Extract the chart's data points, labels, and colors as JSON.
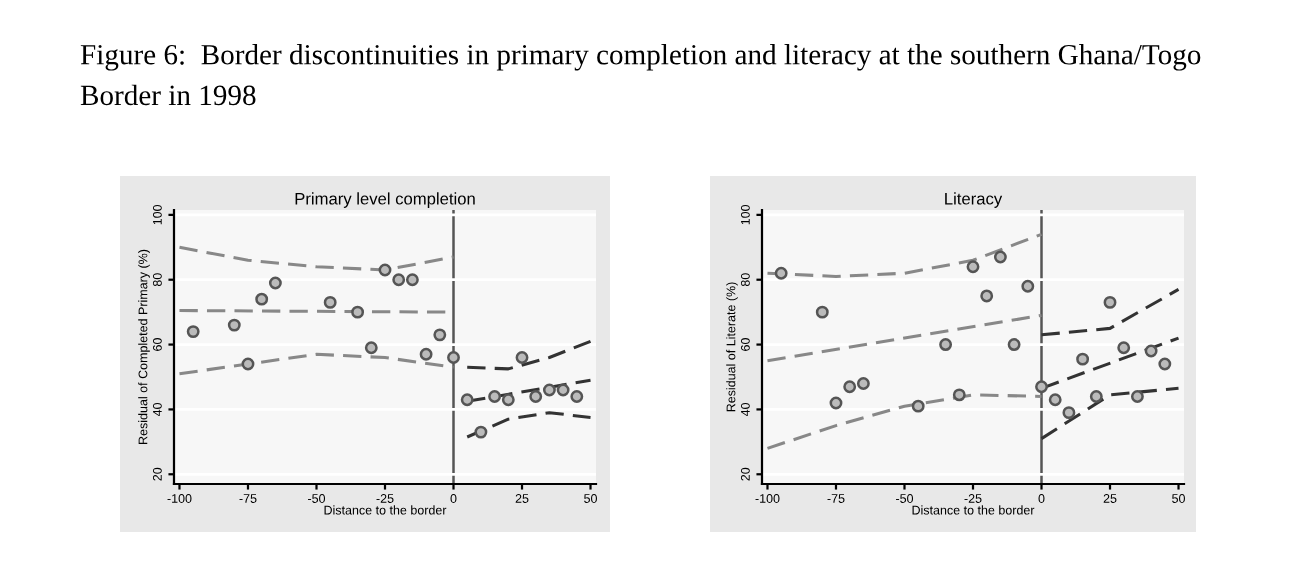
{
  "chart_data": [
    {
      "type": "scatter",
      "title": "Primary level completion",
      "xlabel": "Distance to the border",
      "ylabel": "Residual of Completed Primary (%)",
      "annotations": [
        "Figure 6:  Border discontinuities in primary completion and literacy at the southern Ghana/Togo Border in 1998"
      ],
      "xlim": [
        -102,
        52
      ],
      "ylim": [
        17,
        101.5
      ],
      "xticks": [
        -100,
        -75,
        -50,
        -25,
        0,
        25,
        50
      ],
      "yticks": [
        20,
        40,
        60,
        80,
        100
      ],
      "grid": "y",
      "ref_lines": [
        {
          "axis": "x",
          "value": 0,
          "color": "#555555"
        }
      ],
      "series": [
        {
          "marker": "circle",
          "color": "#555555",
          "x": [
            -95,
            -80,
            -75,
            -70,
            -65,
            -45,
            -35,
            -30,
            -25,
            -20,
            -15,
            -10,
            -5,
            0,
            5,
            10,
            15,
            20,
            25,
            30,
            35,
            40,
            45
          ],
          "values": [
            64,
            66,
            54,
            74,
            79,
            73,
            70,
            59,
            83,
            80,
            80,
            57,
            63,
            56,
            43,
            33,
            44,
            43,
            56,
            44,
            46,
            46,
            44
          ]
        },
        {
          "type": "line",
          "line_style": "dashed",
          "color": "#888888",
          "x": [
            -100,
            0
          ],
          "values": [
            70.5,
            70
          ]
        },
        {
          "type": "line",
          "line_style": "dashed",
          "color": "#888888",
          "x": [
            -100,
            -75,
            -50,
            -25,
            0
          ],
          "values": [
            90,
            86,
            84,
            83,
            87
          ]
        },
        {
          "type": "line",
          "line_style": "dashed",
          "color": "#888888",
          "x": [
            -100,
            -75,
            -50,
            -25,
            0
          ],
          "values": [
            51,
            54,
            57,
            56,
            53
          ]
        },
        {
          "type": "line",
          "line_style": "dashed",
          "color": "#333333",
          "x": [
            5,
            50
          ],
          "values": [
            42.5,
            49
          ]
        },
        {
          "type": "line",
          "line_style": "dashed",
          "color": "#333333",
          "x": [
            5,
            20,
            35,
            50
          ],
          "values": [
            53,
            52.5,
            56,
            61
          ]
        },
        {
          "type": "line",
          "line_style": "dashed",
          "color": "#333333",
          "x": [
            5,
            20,
            35,
            50
          ],
          "values": [
            31.5,
            37,
            39,
            37.5
          ]
        }
      ]
    },
    {
      "type": "scatter",
      "title": "Literacy",
      "xlabel": "Distance to the border",
      "ylabel": "Residual of Literate (%)",
      "xlim": [
        -102,
        52
      ],
      "ylim": [
        17,
        101.5
      ],
      "xticks": [
        -100,
        -75,
        -50,
        -25,
        0,
        25,
        50
      ],
      "yticks": [
        20,
        40,
        60,
        80,
        100
      ],
      "grid": "y",
      "ref_lines": [
        {
          "axis": "x",
          "value": 0,
          "color": "#555555"
        }
      ],
      "series": [
        {
          "marker": "circle",
          "color": "#555555",
          "x": [
            -95,
            -80,
            -75,
            -70,
            -65,
            -45,
            -35,
            -30,
            -25,
            -20,
            -15,
            -10,
            -5,
            0,
            5,
            10,
            15,
            20,
            25,
            30,
            35,
            40,
            45
          ],
          "values": [
            82,
            70,
            42,
            47,
            48,
            41,
            60,
            44.5,
            84,
            75,
            87,
            60,
            78,
            47,
            43,
            39,
            55.5,
            44,
            73,
            59,
            44,
            58,
            54
          ]
        },
        {
          "type": "line",
          "line_style": "dashed",
          "color": "#888888",
          "x": [
            -100,
            0
          ],
          "values": [
            55,
            69
          ]
        },
        {
          "type": "line",
          "line_style": "dashed",
          "color": "#888888",
          "x": [
            -100,
            -75,
            -50,
            -25,
            0
          ],
          "values": [
            82,
            81,
            82,
            86,
            94
          ]
        },
        {
          "type": "line",
          "line_style": "dashed",
          "color": "#888888",
          "x": [
            -100,
            -75,
            -50,
            -25,
            0
          ],
          "values": [
            28,
            35,
            41,
            44.5,
            44
          ]
        },
        {
          "type": "line",
          "line_style": "dashed",
          "color": "#333333",
          "x": [
            0,
            50
          ],
          "values": [
            46.5,
            62
          ]
        },
        {
          "type": "line",
          "line_style": "dashed",
          "color": "#333333",
          "x": [
            0,
            25,
            50
          ],
          "values": [
            63,
            65,
            77
          ]
        },
        {
          "type": "line",
          "line_style": "dashed",
          "color": "#333333",
          "x": [
            0,
            25,
            50
          ],
          "values": [
            31,
            44.5,
            46.5
          ]
        }
      ]
    }
  ]
}
